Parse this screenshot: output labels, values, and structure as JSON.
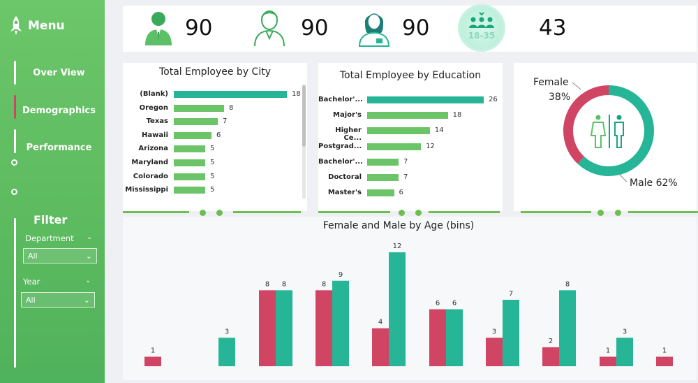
{
  "sidebar": {
    "menu_label": "Menu",
    "nav": [
      {
        "label": "Over View"
      },
      {
        "label": "Demographics"
      },
      {
        "label": "Performance"
      }
    ],
    "filter_title": "Filter",
    "filters": [
      {
        "label": "Department",
        "value": "All"
      },
      {
        "label": "Year",
        "value": "All"
      }
    ]
  },
  "kpis": [
    {
      "icon": "male-employee-icon",
      "value": "90"
    },
    {
      "icon": "male-outline-employee-icon",
      "value": "90"
    },
    {
      "icon": "female-employee-icon",
      "value": "90"
    },
    {
      "icon": "age-group-icon",
      "icon_text": "18-35",
      "value": "43"
    }
  ],
  "chart_data": [
    {
      "type": "bar",
      "orientation": "horizontal",
      "title": "Total Employee by City",
      "categories": [
        "(Blank)",
        "Oregon",
        "Texas",
        "Hawaii",
        "Arizona",
        "Maryland",
        "Colorado",
        "Mississippi"
      ],
      "values": [
        18,
        8,
        7,
        6,
        5,
        5,
        5,
        5
      ],
      "xlim": [
        0,
        18
      ]
    },
    {
      "type": "bar",
      "orientation": "horizontal",
      "title": "Total Employee by Education",
      "categories": [
        "Bachelor'...",
        "Major's",
        "Higher Ce...",
        "Postgrad...",
        "Bachelor'...",
        "Doctoral",
        "Master's"
      ],
      "values": [
        26,
        18,
        14,
        12,
        7,
        7,
        6
      ],
      "xlim": [
        0,
        26
      ]
    },
    {
      "type": "pie",
      "style": "donut",
      "slices": [
        {
          "label": "Female",
          "percent_label": "38%",
          "value": 38
        },
        {
          "label": "Male",
          "percent_label": "62%",
          "value": 62
        }
      ],
      "center_icon": "gender-restroom-icon"
    },
    {
      "type": "bar",
      "title": "Female and Male by Age (bins)",
      "bins": 10,
      "series": [
        {
          "values": [
            1,
            0,
            8,
            8,
            4,
            6,
            3,
            2,
            1,
            1
          ]
        },
        {
          "values": [
            0,
            3,
            8,
            9,
            12,
            6,
            7,
            8,
            3,
            0
          ]
        }
      ],
      "ylim": [
        0,
        12
      ]
    }
  ],
  "colors": {
    "sidebar": "#5cba5f",
    "teal": "#26b596",
    "green_bar": "#6cc468",
    "female": "#d04464",
    "male": "#26b596",
    "accent_line": "#6cbf4f"
  }
}
